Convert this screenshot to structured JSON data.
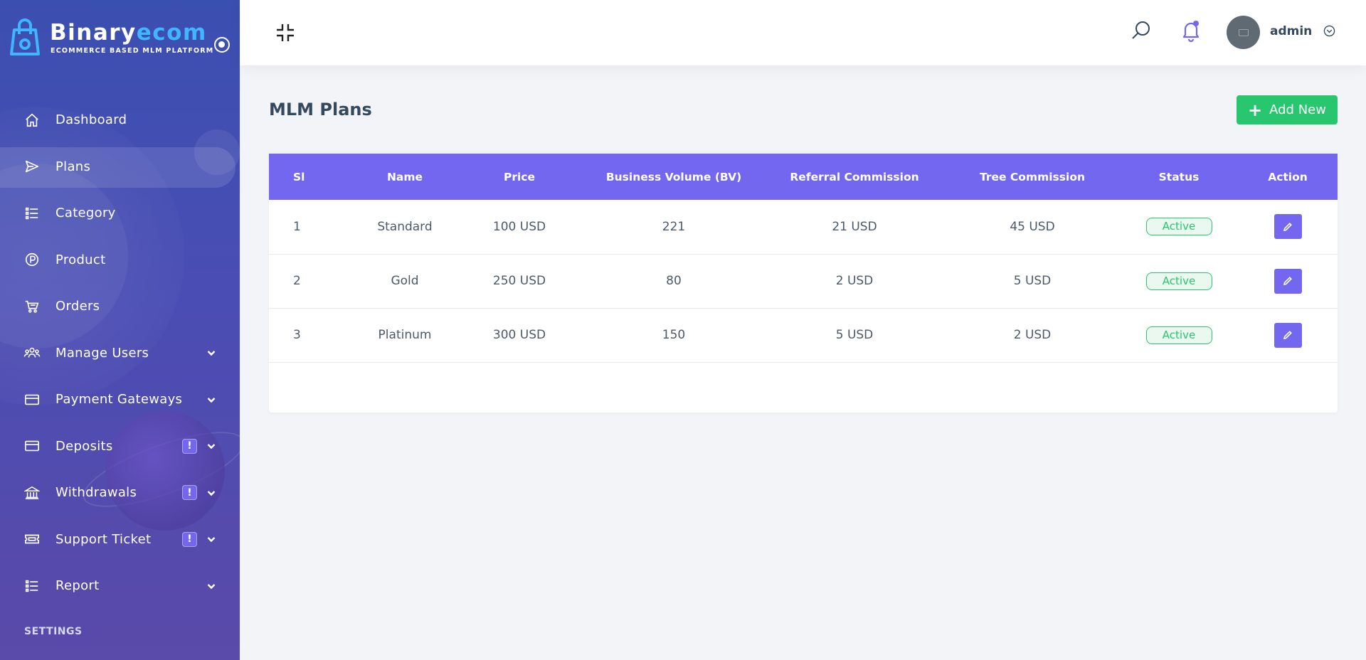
{
  "brand": {
    "name_main": "Binary",
    "name_accent": "ecom",
    "tagline": "ECOMMERCE BASED MLM PLATFORM",
    "accent_color": "#3fb6ff"
  },
  "sidebar": {
    "items": [
      {
        "label": "Dashboard",
        "icon": "home-icon"
      },
      {
        "label": "Plans",
        "icon": "send-icon",
        "active": true
      },
      {
        "label": "Category",
        "icon": "list-icon"
      },
      {
        "label": "Product",
        "icon": "product-icon"
      },
      {
        "label": "Orders",
        "icon": "cart-icon"
      },
      {
        "label": "Manage Users",
        "icon": "users-icon",
        "has_submenu": true
      },
      {
        "label": "Payment Gateways",
        "icon": "credit-card-icon",
        "has_submenu": true
      },
      {
        "label": "Deposits",
        "icon": "credit-card-icon",
        "has_submenu": true,
        "badge": "!"
      },
      {
        "label": "Withdrawals",
        "icon": "bank-icon",
        "has_submenu": true,
        "badge": "!"
      },
      {
        "label": "Support Ticket",
        "icon": "ticket-icon",
        "has_submenu": true,
        "badge": "!"
      },
      {
        "label": "Report",
        "icon": "list-icon",
        "has_submenu": true
      }
    ],
    "settings_title": "SETTINGS"
  },
  "header": {
    "user_name": "admin"
  },
  "main": {
    "title": "MLM Plans",
    "add_button_label": "Add New",
    "table": {
      "columns": [
        "Sl",
        "Name",
        "Price",
        "Business Volume (BV)",
        "Referral Commission",
        "Tree Commission",
        "Status",
        "Action"
      ],
      "rows": [
        {
          "sl": "1",
          "name": "Standard",
          "price": "100 USD",
          "bv": "221",
          "referral": "21 USD",
          "tree": "45 USD",
          "status": "Active"
        },
        {
          "sl": "2",
          "name": "Gold",
          "price": "250 USD",
          "bv": "80",
          "referral": "2 USD",
          "tree": "5 USD",
          "status": "Active"
        },
        {
          "sl": "3",
          "name": "Platinum",
          "price": "300 USD",
          "bv": "150",
          "referral": "5 USD",
          "tree": "2 USD",
          "status": "Active"
        }
      ]
    }
  },
  "colors": {
    "primary": "#7367f0",
    "success": "#28c76f",
    "sidebar_top": "#3b4fb0",
    "sidebar_bottom": "#5a4aa9"
  }
}
